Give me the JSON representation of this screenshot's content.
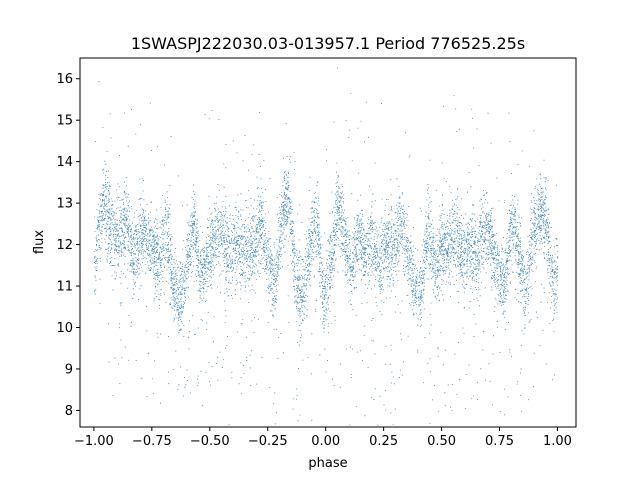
{
  "chart_data": {
    "type": "scatter",
    "title": "1SWASPJ222030.03-013957.1 Period 776525.25s",
    "xlabel": "phase",
    "ylabel": "flux",
    "xlim": [
      -1.06,
      1.08
    ],
    "ylim": [
      7.6,
      16.5
    ],
    "x_ticks": [
      -1.0,
      -0.75,
      -0.5,
      -0.25,
      0.0,
      0.25,
      0.5,
      0.75,
      1.0
    ],
    "x_tick_labels": [
      "−1.00",
      "−0.75",
      "−0.50",
      "−0.25",
      "0.00",
      "0.25",
      "0.50",
      "0.75",
      "1.00"
    ],
    "y_ticks": [
      8,
      9,
      10,
      11,
      12,
      13,
      14,
      15,
      16
    ],
    "y_tick_labels": [
      "8",
      "9",
      "10",
      "11",
      "12",
      "13",
      "14",
      "15",
      "16"
    ],
    "grid": false,
    "marker_color": "#1f77b4",
    "series": [
      {
        "values": {
          "x_range": [
            -1.0,
            1.0
          ],
          "profile": [
            [
              -1.0,
              11.6
            ],
            [
              -0.96,
              13.1
            ],
            [
              -0.93,
              12.4
            ],
            [
              -0.89,
              12.2
            ],
            [
              -0.86,
              12.6
            ],
            [
              -0.83,
              11.7
            ],
            [
              -0.79,
              12.3
            ],
            [
              -0.75,
              12.0
            ],
            [
              -0.72,
              11.5
            ],
            [
              -0.69,
              12.5
            ],
            [
              -0.66,
              11.0
            ],
            [
              -0.63,
              10.7
            ],
            [
              -0.6,
              11.5
            ],
            [
              -0.57,
              12.5
            ],
            [
              -0.54,
              11.2
            ],
            [
              -0.51,
              11.8
            ],
            [
              -0.48,
              12.2
            ],
            [
              -0.45,
              12.3
            ],
            [
              -0.42,
              11.8
            ],
            [
              -0.38,
              12.0
            ],
            [
              -0.35,
              11.8
            ],
            [
              -0.32,
              12.0
            ],
            [
              -0.28,
              12.5
            ],
            [
              -0.25,
              11.6
            ],
            [
              -0.22,
              11.0
            ],
            [
              -0.19,
              12.6
            ],
            [
              -0.16,
              13.2
            ],
            [
              -0.13,
              11.0
            ],
            [
              -0.1,
              10.8
            ],
            [
              -0.07,
              12.0
            ],
            [
              -0.04,
              12.8
            ],
            [
              -0.01,
              10.6
            ],
            [
              0.02,
              11.6
            ],
            [
              0.05,
              13.0
            ],
            [
              0.08,
              12.2
            ],
            [
              0.11,
              11.3
            ],
            [
              0.14,
              12.3
            ],
            [
              0.17,
              11.7
            ],
            [
              0.2,
              12.2
            ],
            [
              0.23,
              11.5
            ],
            [
              0.26,
              12.0
            ],
            [
              0.29,
              11.9
            ],
            [
              0.32,
              12.5
            ],
            [
              0.35,
              11.8
            ],
            [
              0.38,
              11.0
            ],
            [
              0.41,
              10.8
            ],
            [
              0.44,
              12.4
            ],
            [
              0.47,
              11.3
            ],
            [
              0.5,
              12.0
            ],
            [
              0.53,
              11.9
            ],
            [
              0.56,
              12.3
            ],
            [
              0.59,
              11.6
            ],
            [
              0.62,
              12.0
            ],
            [
              0.65,
              11.6
            ],
            [
              0.68,
              12.4
            ],
            [
              0.71,
              12.1
            ],
            [
              0.74,
              11.3
            ],
            [
              0.77,
              11.0
            ],
            [
              0.8,
              12.6
            ],
            [
              0.83,
              12.0
            ],
            [
              0.86,
              10.8
            ],
            [
              0.89,
              12.2
            ],
            [
              0.92,
              12.8
            ],
            [
              0.95,
              12.6
            ],
            [
              0.98,
              10.8
            ],
            [
              1.0,
              11.6
            ]
          ]
        }
      }
    ]
  }
}
